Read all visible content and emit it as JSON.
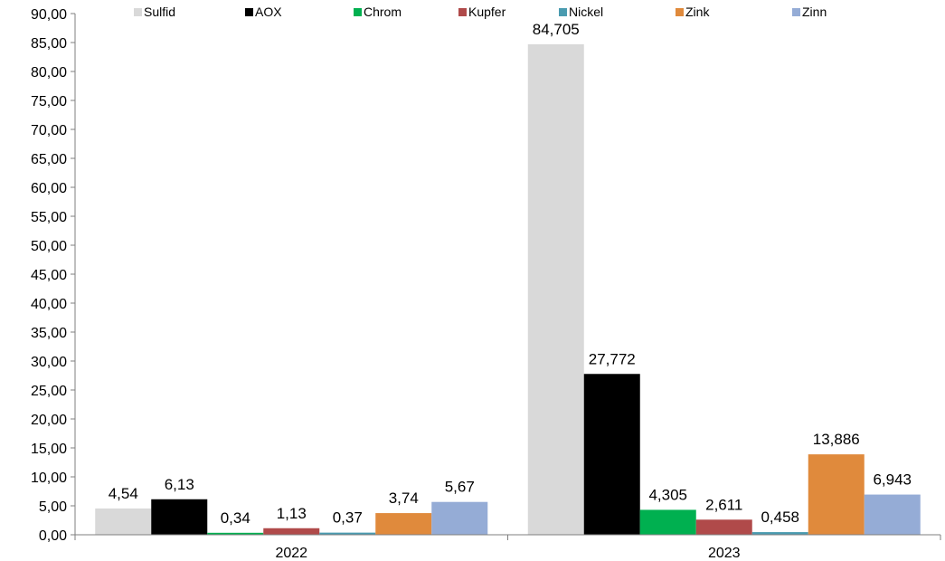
{
  "chart_data": {
    "type": "bar",
    "title": "",
    "xlabel": "",
    "ylabel": "",
    "categories": [
      "2022",
      "2023"
    ],
    "ylim": [
      0,
      90
    ],
    "ytick_labels": [
      "0,00",
      "5,00",
      "10,00",
      "15,00",
      "20,00",
      "25,00",
      "30,00",
      "35,00",
      "40,00",
      "45,00",
      "50,00",
      "55,00",
      "60,00",
      "65,00",
      "70,00",
      "75,00",
      "80,00",
      "85,00",
      "90,00"
    ],
    "legend_position": "top",
    "grid": false,
    "series": [
      {
        "name": "Sulfid",
        "color": "#d9d9d9",
        "values": [
          4.54,
          84.705
        ],
        "labels": [
          "4,54",
          "84,705"
        ]
      },
      {
        "name": "AOX",
        "color": "#000000",
        "values": [
          6.13,
          27.772
        ],
        "labels": [
          "6,13",
          "27,772"
        ]
      },
      {
        "name": "Chrom",
        "color": "#00b050",
        "values": [
          0.34,
          4.305
        ],
        "labels": [
          "0,34",
          "4,305"
        ]
      },
      {
        "name": "Kupfer",
        "color": "#b04a4a",
        "values": [
          1.13,
          2.611
        ],
        "labels": [
          "1,13",
          "2,611"
        ]
      },
      {
        "name": "Nickel",
        "color": "#4a9bb0",
        "values": [
          0.37,
          0.458
        ],
        "labels": [
          "0,37",
          "0,458"
        ]
      },
      {
        "name": "Zink",
        "color": "#e08a3c",
        "values": [
          3.74,
          13.886
        ],
        "labels": [
          "3,74",
          "13,886"
        ]
      },
      {
        "name": "Zinn",
        "color": "#95acd6",
        "values": [
          5.67,
          6.943
        ],
        "labels": [
          "5,67",
          "6,943"
        ]
      }
    ]
  }
}
